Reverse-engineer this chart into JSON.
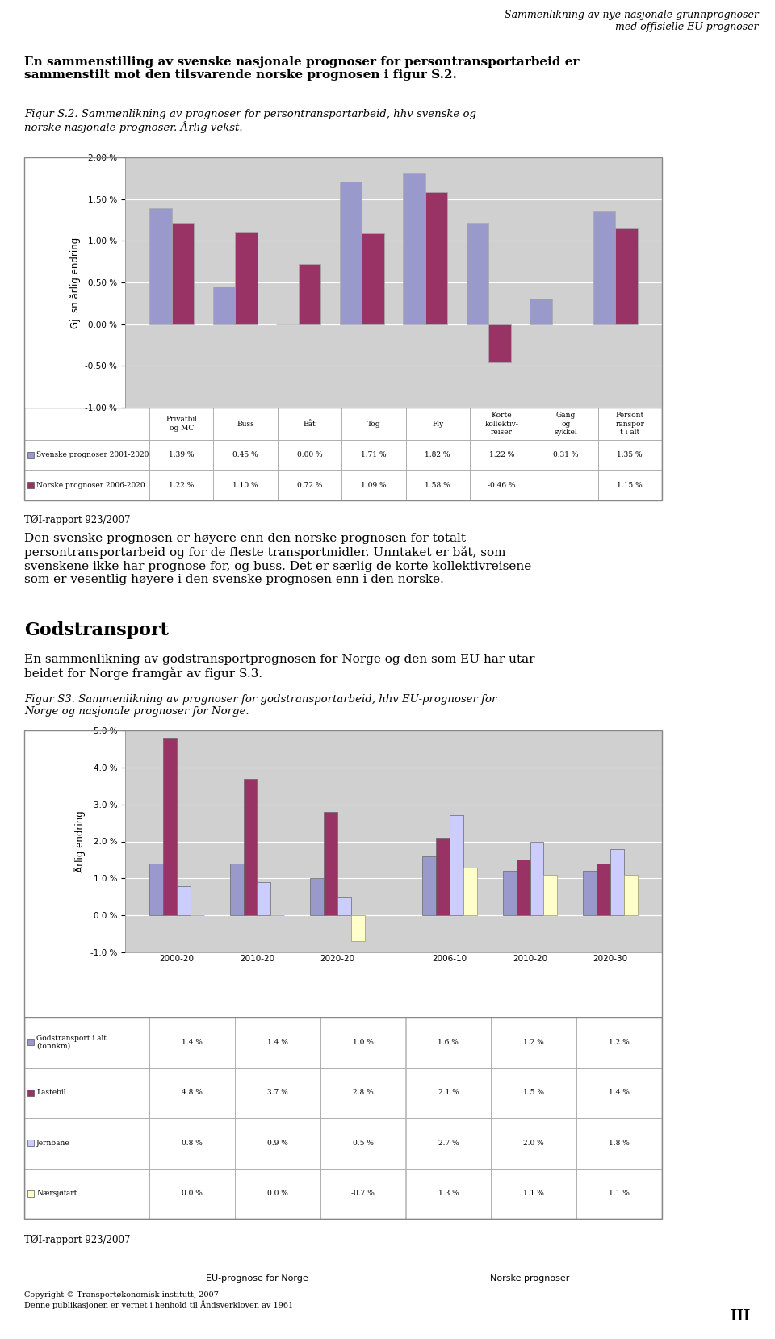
{
  "page_bg": "#ffffff",
  "header_italic": "Sammenlikning av nye nasjonale grunnprognoser\nmed offisielle EU-prognoser",
  "intro_text1": "En sammenstilling av svenske nasjonale prognoser for persontransportarbeid er\nsammenstilt mot den tilsvarende norske prognosen i figur S.2.",
  "figcap1_italic": "Figur S.2. Sammenlikning av prognoser for persontransportarbeid, hhv svenske og\nnorske nasjonale prognoser. Årlig vekst.",
  "chart1": {
    "ylabel": "Gj. sn årlig endring",
    "ylim": [
      -1.0,
      2.0
    ],
    "ytick_labels": [
      "-1.00 %",
      "-0.50 %",
      "0.00 %",
      "0.50 %",
      "1.00 %",
      "1.50 %",
      "2.00 %"
    ],
    "ytick_vals": [
      -1.0,
      -0.5,
      0.0,
      0.5,
      1.0,
      1.5,
      2.0
    ],
    "categories": [
      "Privatbil\nog MC",
      "Buss",
      "Båt",
      "Tog",
      "Fly",
      "Korte\nkollektiv-\nreiser",
      "Gang\nog\nsykkel",
      "Persont\nranspor\nt i alt"
    ],
    "series1_label": "Svenske prognoser 2001-2020",
    "series1_color": "#9999cc",
    "series1_values": [
      1.39,
      0.45,
      0.0,
      1.71,
      1.82,
      1.22,
      0.31,
      1.35
    ],
    "series2_label": "Norske prognoser 2006-2020",
    "series2_color": "#993366",
    "series2_values": [
      1.22,
      1.1,
      0.72,
      1.09,
      1.58,
      -0.46,
      null,
      1.15
    ],
    "table_rows": [
      [
        "Svenske prognoser 2001-2020",
        "1.39 %",
        "0.45 %",
        "0.00 %",
        "1.71 %",
        "1.82 %",
        "1.22 %",
        "0.31 %",
        "1.35 %"
      ],
      [
        "Norske prognoser 2006-2020",
        "1.22 %",
        "1.10 %",
        "0.72 %",
        "1.09 %",
        "1.58 %",
        "-0.46 %",
        "",
        "1.15 %"
      ]
    ]
  },
  "toi_text": "TØI-rapport 923/2007",
  "body_text1": "Den svenske prognosen er høyere enn den norske prognosen for totalt\npersontransportarbeid og for de fleste transportmidler. Unntaket er båt, som\nsvenskene ikke har prognose for, og buss. Det er særlig de korte kollektivreisene\nsom er vesentlig høyere i den svenske prognosen enn i den norske.",
  "godstransport_heading": "Godstransport",
  "body_text2": "En sammenlikning av godstransportprognosen for Norge og den som EU har utar-\nbeidet for Norge framgår av figur S.3.",
  "figcap2_italic": "Figur S3. Sammenlikning av prognoser for godstransportarbeid, hhv EU-prognoser for\nNorge og nasjonale prognoser for Norge.",
  "chart2": {
    "ylabel": "Årlig endring",
    "ylim": [
      -1.0,
      5.0
    ],
    "ytick_vals": [
      -1.0,
      0.0,
      1.0,
      2.0,
      3.0,
      4.0,
      5.0
    ],
    "ytick_labels": [
      "-1.0 %",
      "0.0 %",
      "1.0 %",
      "2.0 %",
      "3.0 %",
      "4.0 %",
      "5.0 %"
    ],
    "group_labels": [
      "2000-20",
      "2010-20",
      "2020-20",
      "2006-10",
      "2010-20",
      "2020-30"
    ],
    "group_header_eu": "EU-prognose for Norge",
    "group_header_no": "Norske prognoser",
    "series": [
      {
        "label": "Godstransport i alt\n(tonnkm)",
        "color": "#9999cc",
        "values": [
          1.4,
          1.4,
          1.0,
          1.6,
          1.2,
          1.2
        ]
      },
      {
        "label": "Lastebil",
        "color": "#993366",
        "values": [
          4.8,
          3.7,
          2.8,
          2.1,
          1.5,
          1.4
        ]
      },
      {
        "label": "Jernbane",
        "color": "#ccccff",
        "values": [
          0.8,
          0.9,
          0.5,
          2.7,
          2.0,
          1.8
        ]
      },
      {
        "label": "Nærsjøfart",
        "color": "#ffffcc",
        "border_color": "#999966",
        "values": [
          0.0,
          0.0,
          -0.7,
          1.3,
          1.1,
          1.1
        ]
      }
    ],
    "table_rows": [
      [
        "Godstransport i alt\n(tonnkm)",
        "1.4 %",
        "1.4 %",
        "1.0 %",
        "1.6 %",
        "1.2 %",
        "1.2 %"
      ],
      [
        "Lastebil",
        "4.8 %",
        "3.7 %",
        "2.8 %",
        "2.1 %",
        "1.5 %",
        "1.4 %"
      ],
      [
        "Jernbane",
        "0.8 %",
        "0.9 %",
        "0.5 %",
        "2.7 %",
        "2.0 %",
        "1.8 %"
      ],
      [
        "Nærsjøfart",
        "0.0 %",
        "0.0 %",
        "-0.7 %",
        "1.3 %",
        "1.1 %",
        "1.1 %"
      ]
    ],
    "series_colors": [
      "#9999cc",
      "#993366",
      "#ccccff",
      "#ffffcc"
    ],
    "series_border_colors": [
      "#666666",
      "#666666",
      "#666666",
      "#999966"
    ]
  },
  "toi_text2": "TØI-rapport 923/2007",
  "footer_text": "Copyright © Transportøkonomisk institutt, 2007\nDenne publikasjonen er vernet i henhold til Åndsverkloven av 1961",
  "footer_right": "III"
}
